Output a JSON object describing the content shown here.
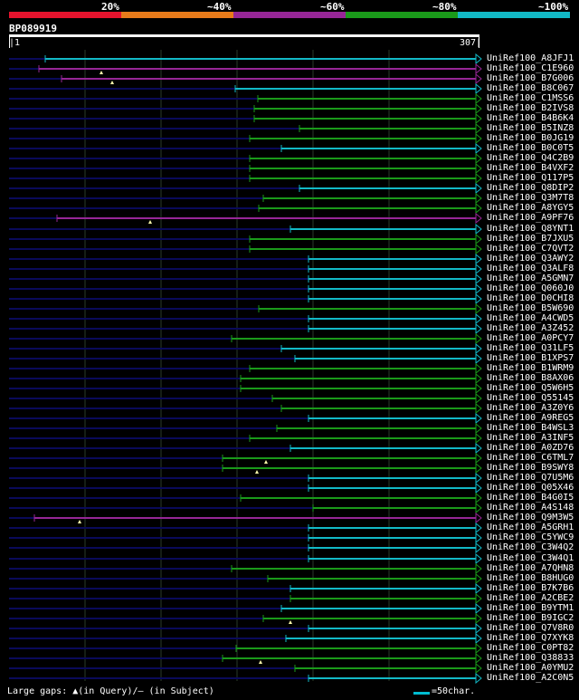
{
  "legend": {
    "labels": [
      "20%",
      "~40%",
      "~60%",
      "~80%",
      "~100%"
    ],
    "colors": [
      "#e6132d",
      "#e87b1a",
      "#962696",
      "#1a9a1a",
      "#12b9c6"
    ]
  },
  "query": {
    "title": "BP089919",
    "start": "|1",
    "end": "307|"
  },
  "footer": {
    "text": "Large gaps: ▲(in Query)/– (in Subject)",
    "scale_text": "=50char."
  },
  "colors": {
    "cyan": "#12b9c6",
    "green": "#1a9a1a",
    "purple": "#962696",
    "navy": "#0a0a5a",
    "grid": "#2a3a2a",
    "arrow": "#ffffff"
  },
  "hits": [
    {
      "name": "UniRef100_A8JFJ1",
      "start": 50,
      "color": "cyan"
    },
    {
      "name": "UniRef100_C1E960",
      "start": 43,
      "color": "purple",
      "gap": 112
    },
    {
      "name": "UniRef100_B7G006",
      "start": 68,
      "color": "purple",
      "gap": 124
    },
    {
      "name": "UniRef100_B8C067",
      "start": 260,
      "color": "cyan"
    },
    {
      "name": "UniRef100_C1MSS6",
      "start": 285,
      "color": "green"
    },
    {
      "name": "UniRef100_B2IVS8",
      "start": 281,
      "color": "green"
    },
    {
      "name": "UniRef100_B4B6K4",
      "start": 281,
      "color": "green"
    },
    {
      "name": "UniRef100_B5INZ8",
      "start": 331,
      "color": "green"
    },
    {
      "name": "UniRef100_B0JG19",
      "start": 276,
      "color": "green"
    },
    {
      "name": "UniRef100_B0C0T5",
      "start": 311,
      "color": "cyan"
    },
    {
      "name": "UniRef100_Q4C2B9",
      "start": 276,
      "color": "green"
    },
    {
      "name": "UniRef100_B4VXF2",
      "start": 276,
      "color": "green"
    },
    {
      "name": "UniRef100_Q117P5",
      "start": 276,
      "color": "green"
    },
    {
      "name": "UniRef100_Q8DIP2",
      "start": 331,
      "color": "cyan"
    },
    {
      "name": "UniRef100_Q3M7T8",
      "start": 291,
      "color": "green"
    },
    {
      "name": "UniRef100_A8YGY5",
      "start": 286,
      "color": "green"
    },
    {
      "name": "UniRef100_A9PF76",
      "start": 63,
      "color": "purple",
      "gap": 166
    },
    {
      "name": "UniRef100_Q8YNT1",
      "start": 321,
      "color": "cyan"
    },
    {
      "name": "UniRef100_B7JXU5",
      "start": 276,
      "color": "green"
    },
    {
      "name": "UniRef100_C7QVT2",
      "start": 276,
      "color": "green"
    },
    {
      "name": "UniRef100_Q3AWY2",
      "start": 341,
      "color": "cyan"
    },
    {
      "name": "UniRef100_Q3ALF8",
      "start": 341,
      "color": "cyan"
    },
    {
      "name": "UniRef100_A5GMN7",
      "start": 341,
      "color": "cyan"
    },
    {
      "name": "UniRef100_Q060J0",
      "start": 341,
      "color": "cyan"
    },
    {
      "name": "UniRef100_D0CHI8",
      "start": 341,
      "color": "cyan"
    },
    {
      "name": "UniRef100_B5W690",
      "start": 286,
      "color": "green"
    },
    {
      "name": "UniRef100_A4CWD5",
      "start": 341,
      "color": "cyan"
    },
    {
      "name": "UniRef100_A3Z452",
      "start": 341,
      "color": "cyan"
    },
    {
      "name": "UniRef100_A0PCY7",
      "start": 256,
      "color": "green"
    },
    {
      "name": "UniRef100_Q31LF5",
      "start": 311,
      "color": "cyan"
    },
    {
      "name": "UniRef100_B1XPS7",
      "start": 326,
      "color": "cyan"
    },
    {
      "name": "UniRef100_B1WRM9",
      "start": 276,
      "color": "green"
    },
    {
      "name": "UniRef100_B8AX06",
      "start": 266,
      "color": "green"
    },
    {
      "name": "UniRef100_Q5W6H5",
      "start": 266,
      "color": "green"
    },
    {
      "name": "UniRef100_Q55145",
      "start": 301,
      "color": "green"
    },
    {
      "name": "UniRef100_A3Z0Y6",
      "start": 311,
      "color": "green"
    },
    {
      "name": "UniRef100_A9REG5",
      "start": 341,
      "color": "cyan"
    },
    {
      "name": "UniRef100_B4WSL3",
      "start": 306,
      "color": "green"
    },
    {
      "name": "UniRef100_A3INF5",
      "start": 276,
      "color": "green"
    },
    {
      "name": "UniRef100_A0ZD76",
      "start": 321,
      "color": "cyan"
    },
    {
      "name": "UniRef100_C6TML7",
      "start": 246,
      "color": "green",
      "gap": 294
    },
    {
      "name": "UniRef100_B9SWY8",
      "start": 246,
      "color": "green",
      "gap": 284
    },
    {
      "name": "UniRef100_Q7U5M6",
      "start": 341,
      "color": "cyan"
    },
    {
      "name": "UniRef100_Q05X46",
      "start": 341,
      "color": "cyan"
    },
    {
      "name": "UniRef100_B4G0I5",
      "start": 266,
      "color": "green"
    },
    {
      "name": "UniRef100_A4S148",
      "start": 346,
      "color": "green"
    },
    {
      "name": "UniRef100_Q9M3W5",
      "start": 38,
      "color": "purple",
      "gap": 88
    },
    {
      "name": "UniRef100_A5GRH1",
      "start": 341,
      "color": "cyan"
    },
    {
      "name": "UniRef100_C5YWC9",
      "start": 341,
      "color": "cyan"
    },
    {
      "name": "UniRef100_C3W4Q2",
      "start": 341,
      "color": "cyan"
    },
    {
      "name": "UniRef100_C3W4Q1",
      "start": 341,
      "color": "cyan"
    },
    {
      "name": "UniRef100_A7QHN8",
      "start": 256,
      "color": "green"
    },
    {
      "name": "UniRef100_B8HUG0",
      "start": 296,
      "color": "green"
    },
    {
      "name": "UniRef100_B7K7B6",
      "start": 321,
      "color": "cyan"
    },
    {
      "name": "UniRef100_A2CBE2",
      "start": 321,
      "color": "green"
    },
    {
      "name": "UniRef100_B9YTM1",
      "start": 311,
      "color": "cyan"
    },
    {
      "name": "UniRef100_B9IGC2",
      "start": 291,
      "color": "green",
      "gap": 321
    },
    {
      "name": "UniRef100_Q7V8R0",
      "start": 341,
      "color": "cyan"
    },
    {
      "name": "UniRef100_Q7XYK8",
      "start": 316,
      "color": "cyan"
    },
    {
      "name": "UniRef100_C0PT82",
      "start": 261,
      "color": "green"
    },
    {
      "name": "UniRef100_Q38833",
      "start": 246,
      "color": "green",
      "gap": 288
    },
    {
      "name": "UniRef100_A0YMU2",
      "start": 326,
      "color": "green"
    },
    {
      "name": "UniRef100_A2C0N5",
      "start": 341,
      "color": "cyan"
    }
  ]
}
